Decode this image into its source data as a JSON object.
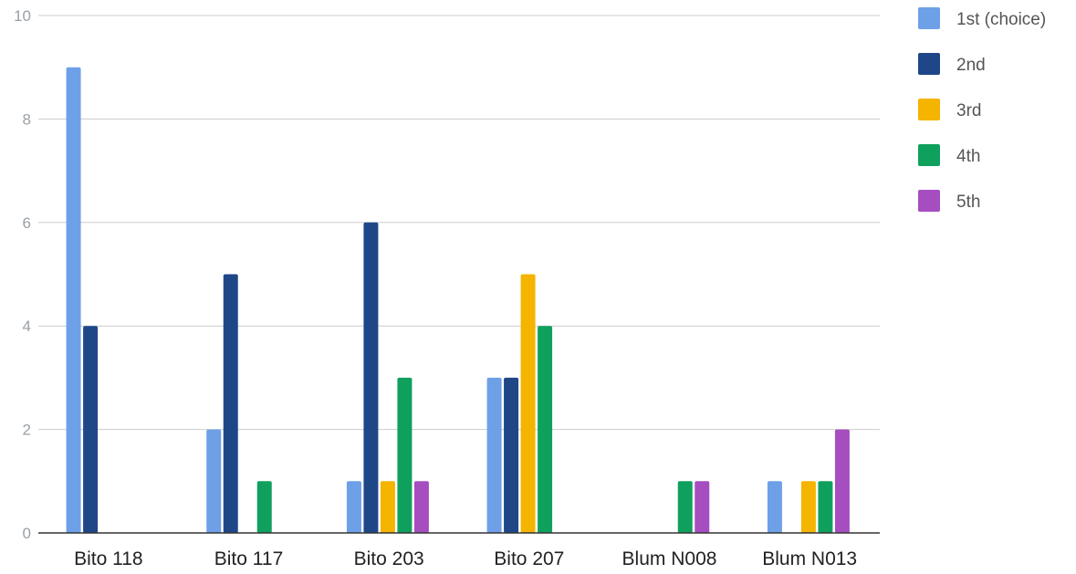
{
  "chart_data": {
    "type": "bar",
    "title": "",
    "xlabel": "",
    "ylabel": "",
    "ylim": [
      0,
      10
    ],
    "yticks": [
      "0",
      "2",
      "4",
      "6",
      "8",
      "10"
    ],
    "grid": true,
    "legend_position": "right",
    "categories": [
      "Bito 118",
      "Bito 117",
      "Bito 203",
      "Bito 207",
      "Blum N008",
      "Blum N013"
    ],
    "series": [
      {
        "name": "1st (choice)",
        "color": "#6ea0e8",
        "values": [
          9,
          2,
          1,
          3,
          0,
          1
        ]
      },
      {
        "name": "2nd",
        "color": "#1f4788",
        "values": [
          4,
          5,
          6,
          3,
          0,
          0
        ]
      },
      {
        "name": "3rd",
        "color": "#f5b400",
        "values": [
          0,
          0,
          1,
          5,
          0,
          1
        ]
      },
      {
        "name": "4th",
        "color": "#10a05d",
        "values": [
          0,
          1,
          3,
          4,
          1,
          1
        ]
      },
      {
        "name": "5th",
        "color": "#a64dc0",
        "values": [
          0,
          0,
          1,
          0,
          1,
          2
        ]
      }
    ]
  }
}
